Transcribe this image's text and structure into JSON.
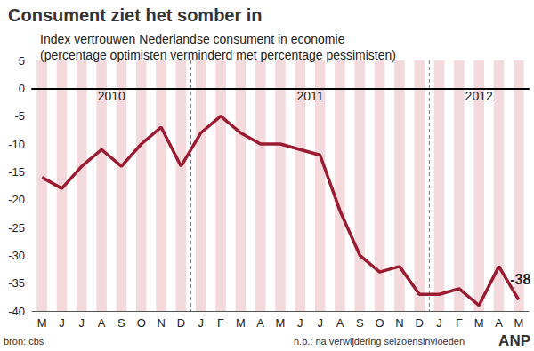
{
  "chart_data": {
    "type": "line",
    "title": "Consument ziet het somber in",
    "subtitle": [
      "Index vertrouwen Nederlandse consument in economie",
      "(percentage optimisten verminderd met percentage pessimisten)"
    ],
    "categories": [
      "M",
      "J",
      "J",
      "A",
      "S",
      "O",
      "N",
      "D",
      "J",
      "F",
      "M",
      "A",
      "M",
      "J",
      "J",
      "A",
      "S",
      "O",
      "N",
      "D",
      "J",
      "F",
      "M",
      "A",
      "M"
    ],
    "values": [
      -16,
      -18,
      -14,
      -11,
      -14,
      -10,
      -7,
      -14,
      -8,
      -5,
      -8,
      -10,
      -10,
      -11,
      -12,
      -22,
      -30,
      -33,
      -32,
      -37,
      -37,
      -36,
      -39,
      -32,
      -38
    ],
    "color": "#9b1b30",
    "marker": "none",
    "ylim": [
      -40,
      5
    ],
    "yticks": [
      -40,
      -35,
      -30,
      -25,
      -20,
      -15,
      -10,
      -5,
      0,
      5
    ],
    "grid": false,
    "years": [
      {
        "label": "2010",
        "first": 0
      },
      {
        "label": "2011",
        "first": 8
      },
      {
        "label": "2012",
        "first": 20
      }
    ],
    "annotations": [
      {
        "text": "-38",
        "index": 24,
        "value": -38
      }
    ],
    "source": "bron: cbs",
    "note": "n.b.: na verwijdering seizoensinvloeden",
    "credit": "ANP"
  }
}
